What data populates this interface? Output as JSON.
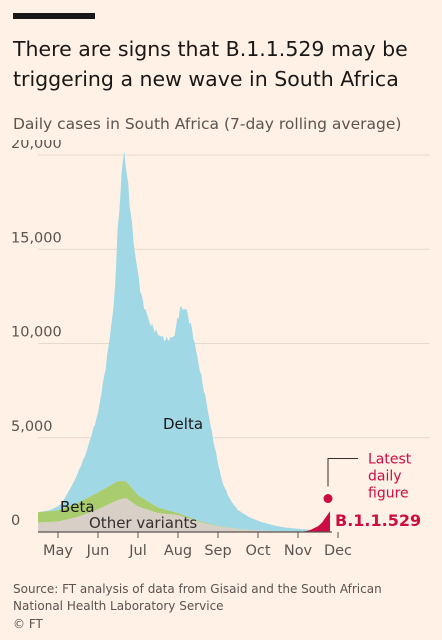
{
  "header": {
    "title": "There are signs that B.1.1.529 may be triggering a new wave in South Africa",
    "subtitle": "Daily cases in South Africa (7-day rolling average)"
  },
  "footer": {
    "source": "Source: FT analysis of data from Gisaid and the South African National Health Laboratory Service",
    "credit": "© FT"
  },
  "colors": {
    "delta": "#a0d8e6",
    "beta": "#a8cc6e",
    "other": "#d8cfc6",
    "b11529": "#cc0d43",
    "background": "#fff1e5",
    "axis": "#5a5450"
  },
  "chart_data": {
    "type": "area",
    "title": "There are signs that B.1.1.529 may be triggering a new wave in South Africa",
    "ylabel": "Daily cases in South Africa (7-day rolling average)",
    "ylim": [
      0,
      20000
    ],
    "yticks": [
      0,
      5000,
      10000,
      15000,
      20000
    ],
    "ytick_labels": [
      "0",
      "5,000",
      "10,000",
      "15,000",
      "20,000"
    ],
    "xlim": [
      0,
      7.3
    ],
    "xticks": [
      0.5,
      1.5,
      2.5,
      3.5,
      4.5,
      5.5,
      6.5,
      7.5
    ],
    "xtick_labels": [
      "May",
      "Jun",
      "Jul",
      "Aug",
      "Sep",
      "Oct",
      "Nov",
      "Dec"
    ],
    "x_unit": "months since 1 May",
    "stacked": true,
    "series": [
      {
        "name": "Other variants",
        "x": [
          0,
          0.5,
          1,
          1.5,
          2,
          2.2,
          2.5,
          3,
          3.5,
          4,
          4.5,
          5,
          5.5,
          6,
          6.5,
          7,
          7.3
        ],
        "values": [
          500,
          550,
          800,
          1200,
          1700,
          1800,
          1350,
          1000,
          900,
          550,
          300,
          150,
          80,
          40,
          20,
          10,
          0
        ]
      },
      {
        "name": "Beta",
        "x": [
          0,
          0.5,
          1,
          1.5,
          2,
          2.2,
          2.5,
          3,
          3.5,
          4,
          4.5,
          5,
          5.5,
          6,
          6.5,
          7,
          7.3
        ],
        "values": [
          550,
          600,
          750,
          900,
          1000,
          900,
          600,
          300,
          100,
          50,
          20,
          10,
          0,
          0,
          0,
          0,
          0
        ]
      },
      {
        "name": "Delta",
        "x": [
          0,
          0.3,
          0.6,
          0.9,
          1.2,
          1.5,
          1.7,
          1.9,
          2.0,
          2.1,
          2.15,
          2.25,
          2.4,
          2.6,
          2.8,
          3.0,
          3.2,
          3.4,
          3.55,
          3.7,
          3.85,
          4.0,
          4.2,
          4.4,
          4.6,
          4.8,
          5.0,
          5.3,
          5.6,
          5.9,
          6.2,
          6.5,
          6.8,
          7.0,
          7.3
        ],
        "values": [
          0,
          50,
          300,
          1200,
          2400,
          4200,
          6500,
          9500,
          13500,
          16500,
          17600,
          15800,
          13000,
          10500,
          9500,
          9200,
          9000,
          9300,
          10900,
          11000,
          10000,
          8500,
          6500,
          4300,
          2400,
          1500,
          1000,
          650,
          450,
          300,
          200,
          150,
          100,
          50,
          0
        ]
      },
      {
        "name": "B.1.1.529",
        "x": [
          6.6,
          6.8,
          7.0,
          7.1,
          7.2,
          7.3
        ],
        "values": [
          0,
          100,
          300,
          500,
          800,
          1100
        ]
      }
    ],
    "annotations": [
      {
        "text": "Delta",
        "series": "Delta"
      },
      {
        "text": "Beta",
        "series": "Beta"
      },
      {
        "text": "Other variants",
        "series": "Other variants"
      },
      {
        "text": "B.1.1.529",
        "series": "B.1.1.529"
      },
      {
        "text": "Latest daily figure",
        "x": 7.3,
        "y": 2200
      }
    ]
  }
}
